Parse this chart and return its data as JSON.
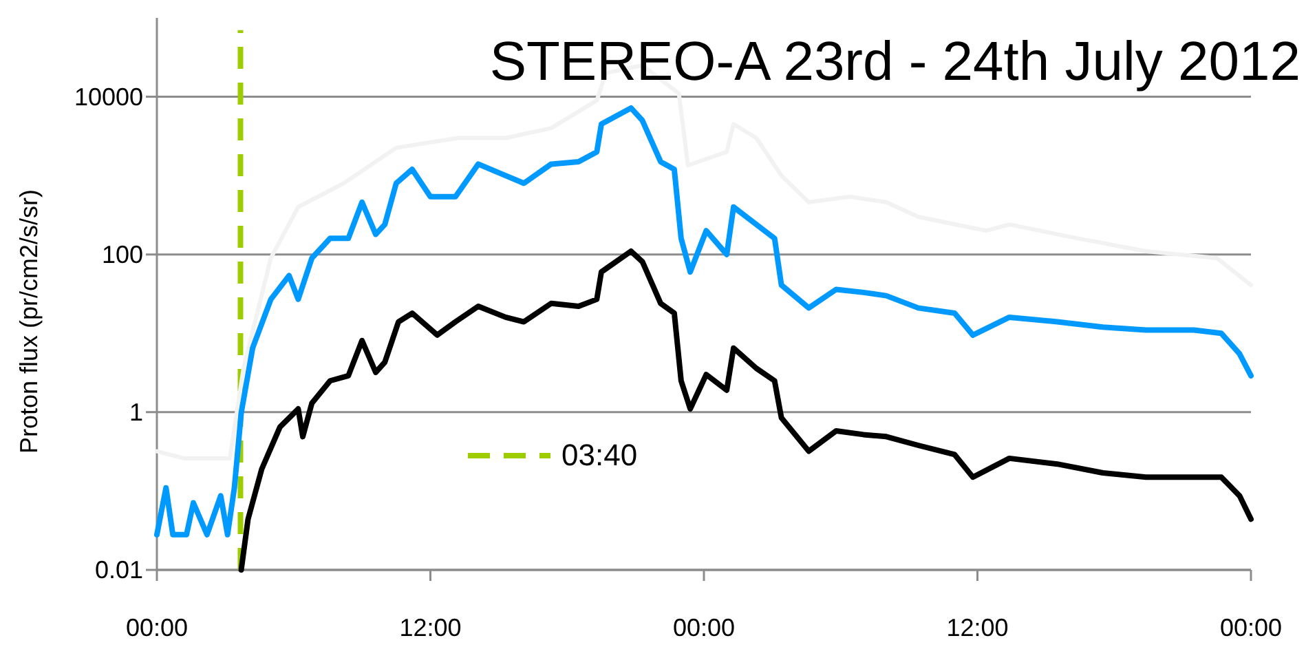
{
  "chart_data": {
    "type": "line",
    "title": "STEREO-A 23rd - 24th July 2012",
    "ylabel": "Proton flux (pr/cm2/s/sr)",
    "log": "y",
    "grid": "y",
    "legend": "bottom",
    "marker": "none",
    "line_style": "solid",
    "xlim": [
      "2012-07-23T00:00",
      "2012-07-25T00:00"
    ],
    "xticks": [
      {
        "value": "2012-07-23T00:00",
        "label": "00:00"
      },
      {
        "value": "2012-07-23T12:00",
        "label": "12:00"
      },
      {
        "value": "2012-07-24T00:00",
        "label": "00:00"
      },
      {
        "value": "2012-07-24T12:00",
        "label": "12:00"
      },
      {
        "value": "2012-07-25T00:00",
        "label": "00:00"
      }
    ],
    "ylim": [
      0.01,
      100000
    ],
    "yticks": [
      0.01,
      1,
      100,
      10000
    ],
    "series": [
      {
        "name": "03:40",
        "color": "#9dcc00",
        "line_style": "dashed",
        "x": [
          "2012-07-23T03:40",
          "2012-07-23T03:40"
        ],
        "values": [
          0.01,
          70000
        ]
      },
      {
        "color": "#f2f2f2",
        "x": [
          "2012-07-23T00:00",
          "2012-07-23T01:12",
          "2012-07-23T03:12",
          "2012-07-23T03:48",
          "2012-07-23T05:00",
          "2012-07-23T06:12",
          "2012-07-23T08:12",
          "2012-07-23T10:30",
          "2012-07-23T13:12",
          "2012-07-23T15:18",
          "2012-07-23T17:18",
          "2012-07-23T19:18",
          "2012-07-23T19:42",
          "2012-07-23T21:18",
          "2012-07-23T22:54",
          "2012-07-23T23:18",
          "2012-07-24T01:00",
          "2012-07-24T01:18",
          "2012-07-24T02:18",
          "2012-07-24T03:24",
          "2012-07-24T04:36",
          "2012-07-24T06:24",
          "2012-07-24T08:00",
          "2012-07-24T09:24",
          "2012-07-24T12:24",
          "2012-07-24T13:24",
          "2012-07-24T16:24",
          "2012-07-24T19:24",
          "2012-07-24T22:30",
          "2012-07-25T00:00"
        ],
        "values": [
          0.32,
          0.26,
          0.26,
          3.6,
          90,
          400,
          800,
          2250,
          3000,
          3000,
          4000,
          9000,
          20000,
          25000,
          11000,
          1350,
          2000,
          4500,
          3000,
          1000,
          460,
          540,
          460,
          300,
          200,
          240,
          160,
          110,
          90,
          41
        ]
      },
      {
        "color": "#0099ff",
        "x": [
          "2012-07-23T00:00",
          "2012-07-23T00:24",
          "2012-07-23T00:42",
          "2012-07-23T01:18",
          "2012-07-23T01:36",
          "2012-07-23T02:12",
          "2012-07-23T02:48",
          "2012-07-23T03:06",
          "2012-07-23T03:24",
          "2012-07-23T03:42",
          "2012-07-23T04:12",
          "2012-07-23T05:00",
          "2012-07-23T05:48",
          "2012-07-23T06:12",
          "2012-07-23T06:48",
          "2012-07-23T07:36",
          "2012-07-23T08:24",
          "2012-07-23T09:00",
          "2012-07-23T09:36",
          "2012-07-23T10:00",
          "2012-07-23T10:30",
          "2012-07-23T11:12",
          "2012-07-23T12:00",
          "2012-07-23T13:06",
          "2012-07-23T14:06",
          "2012-07-23T15:18",
          "2012-07-23T16:06",
          "2012-07-23T17:18",
          "2012-07-23T18:30",
          "2012-07-23T19:18",
          "2012-07-23T19:30",
          "2012-07-23T20:48",
          "2012-07-23T21:18",
          "2012-07-23T22:06",
          "2012-07-23T22:42",
          "2012-07-23T23:00",
          "2012-07-23T23:24",
          "2012-07-24T00:06",
          "2012-07-24T01:00",
          "2012-07-24T01:18",
          "2012-07-24T02:18",
          "2012-07-24T03:06",
          "2012-07-24T03:24",
          "2012-07-24T04:36",
          "2012-07-24T05:48",
          "2012-07-24T07:00",
          "2012-07-24T08:00",
          "2012-07-24T09:24",
          "2012-07-24T11:00",
          "2012-07-24T11:48",
          "2012-07-24T13:24",
          "2012-07-24T15:30",
          "2012-07-24T17:30",
          "2012-07-24T19:24",
          "2012-07-24T21:30",
          "2012-07-24T22:42",
          "2012-07-24T23:30",
          "2012-07-25T00:00"
        ],
        "values": [
          0.028,
          0.11,
          0.028,
          0.028,
          0.071,
          0.028,
          0.087,
          0.028,
          0.11,
          0.98,
          6.5,
          27,
          54,
          27,
          90,
          160,
          160,
          460,
          180,
          240,
          800,
          1200,
          540,
          540,
          1400,
          1000,
          800,
          1400,
          1500,
          2000,
          4500,
          7200,
          5000,
          1500,
          1200,
          160,
          60,
          200,
          100,
          400,
          240,
          160,
          41,
          21,
          36,
          33,
          30,
          21,
          18,
          9.5,
          16,
          14,
          12,
          11,
          11,
          10,
          5.5,
          2.9
        ]
      },
      {
        "color": "#000000",
        "x": [
          "2012-07-23T03:42",
          "2012-07-23T04:00",
          "2012-07-23T04:36",
          "2012-07-23T05:24",
          "2012-07-23T06:12",
          "2012-07-23T06:24",
          "2012-07-23T06:48",
          "2012-07-23T07:36",
          "2012-07-23T08:24",
          "2012-07-23T09:00",
          "2012-07-23T09:36",
          "2012-07-23T10:00",
          "2012-07-23T10:36",
          "2012-07-23T11:12",
          "2012-07-23T12:18",
          "2012-07-23T13:06",
          "2012-07-23T14:06",
          "2012-07-23T15:18",
          "2012-07-23T16:06",
          "2012-07-23T17:18",
          "2012-07-23T18:30",
          "2012-07-23T19:18",
          "2012-07-23T19:30",
          "2012-07-23T20:48",
          "2012-07-23T21:18",
          "2012-07-23T22:06",
          "2012-07-23T22:42",
          "2012-07-23T23:00",
          "2012-07-23T23:24",
          "2012-07-24T00:06",
          "2012-07-24T01:00",
          "2012-07-24T01:18",
          "2012-07-24T02:18",
          "2012-07-24T03:06",
          "2012-07-24T03:24",
          "2012-07-24T04:36",
          "2012-07-24T05:48",
          "2012-07-24T07:00",
          "2012-07-24T08:00",
          "2012-07-24T09:24",
          "2012-07-24T11:00",
          "2012-07-24T11:48",
          "2012-07-24T13:24",
          "2012-07-24T15:30",
          "2012-07-24T17:30",
          "2012-07-24T19:24",
          "2012-07-24T21:30",
          "2012-07-24T22:42",
          "2012-07-24T23:30",
          "2012-07-25T00:00"
        ],
        "values": [
          0.01,
          0.044,
          0.19,
          0.65,
          1.1,
          0.49,
          1.3,
          2.5,
          2.9,
          8.1,
          3.2,
          4.3,
          14,
          18,
          9.5,
          14,
          22,
          16,
          14,
          24,
          22,
          27,
          60,
          110,
          81,
          24,
          18,
          2.5,
          1.1,
          3.0,
          1.9,
          6.5,
          3.6,
          2.5,
          0.85,
          0.32,
          0.58,
          0.52,
          0.49,
          0.38,
          0.29,
          0.15,
          0.26,
          0.22,
          0.17,
          0.15,
          0.15,
          0.15,
          0.087,
          0.044
        ]
      }
    ]
  }
}
